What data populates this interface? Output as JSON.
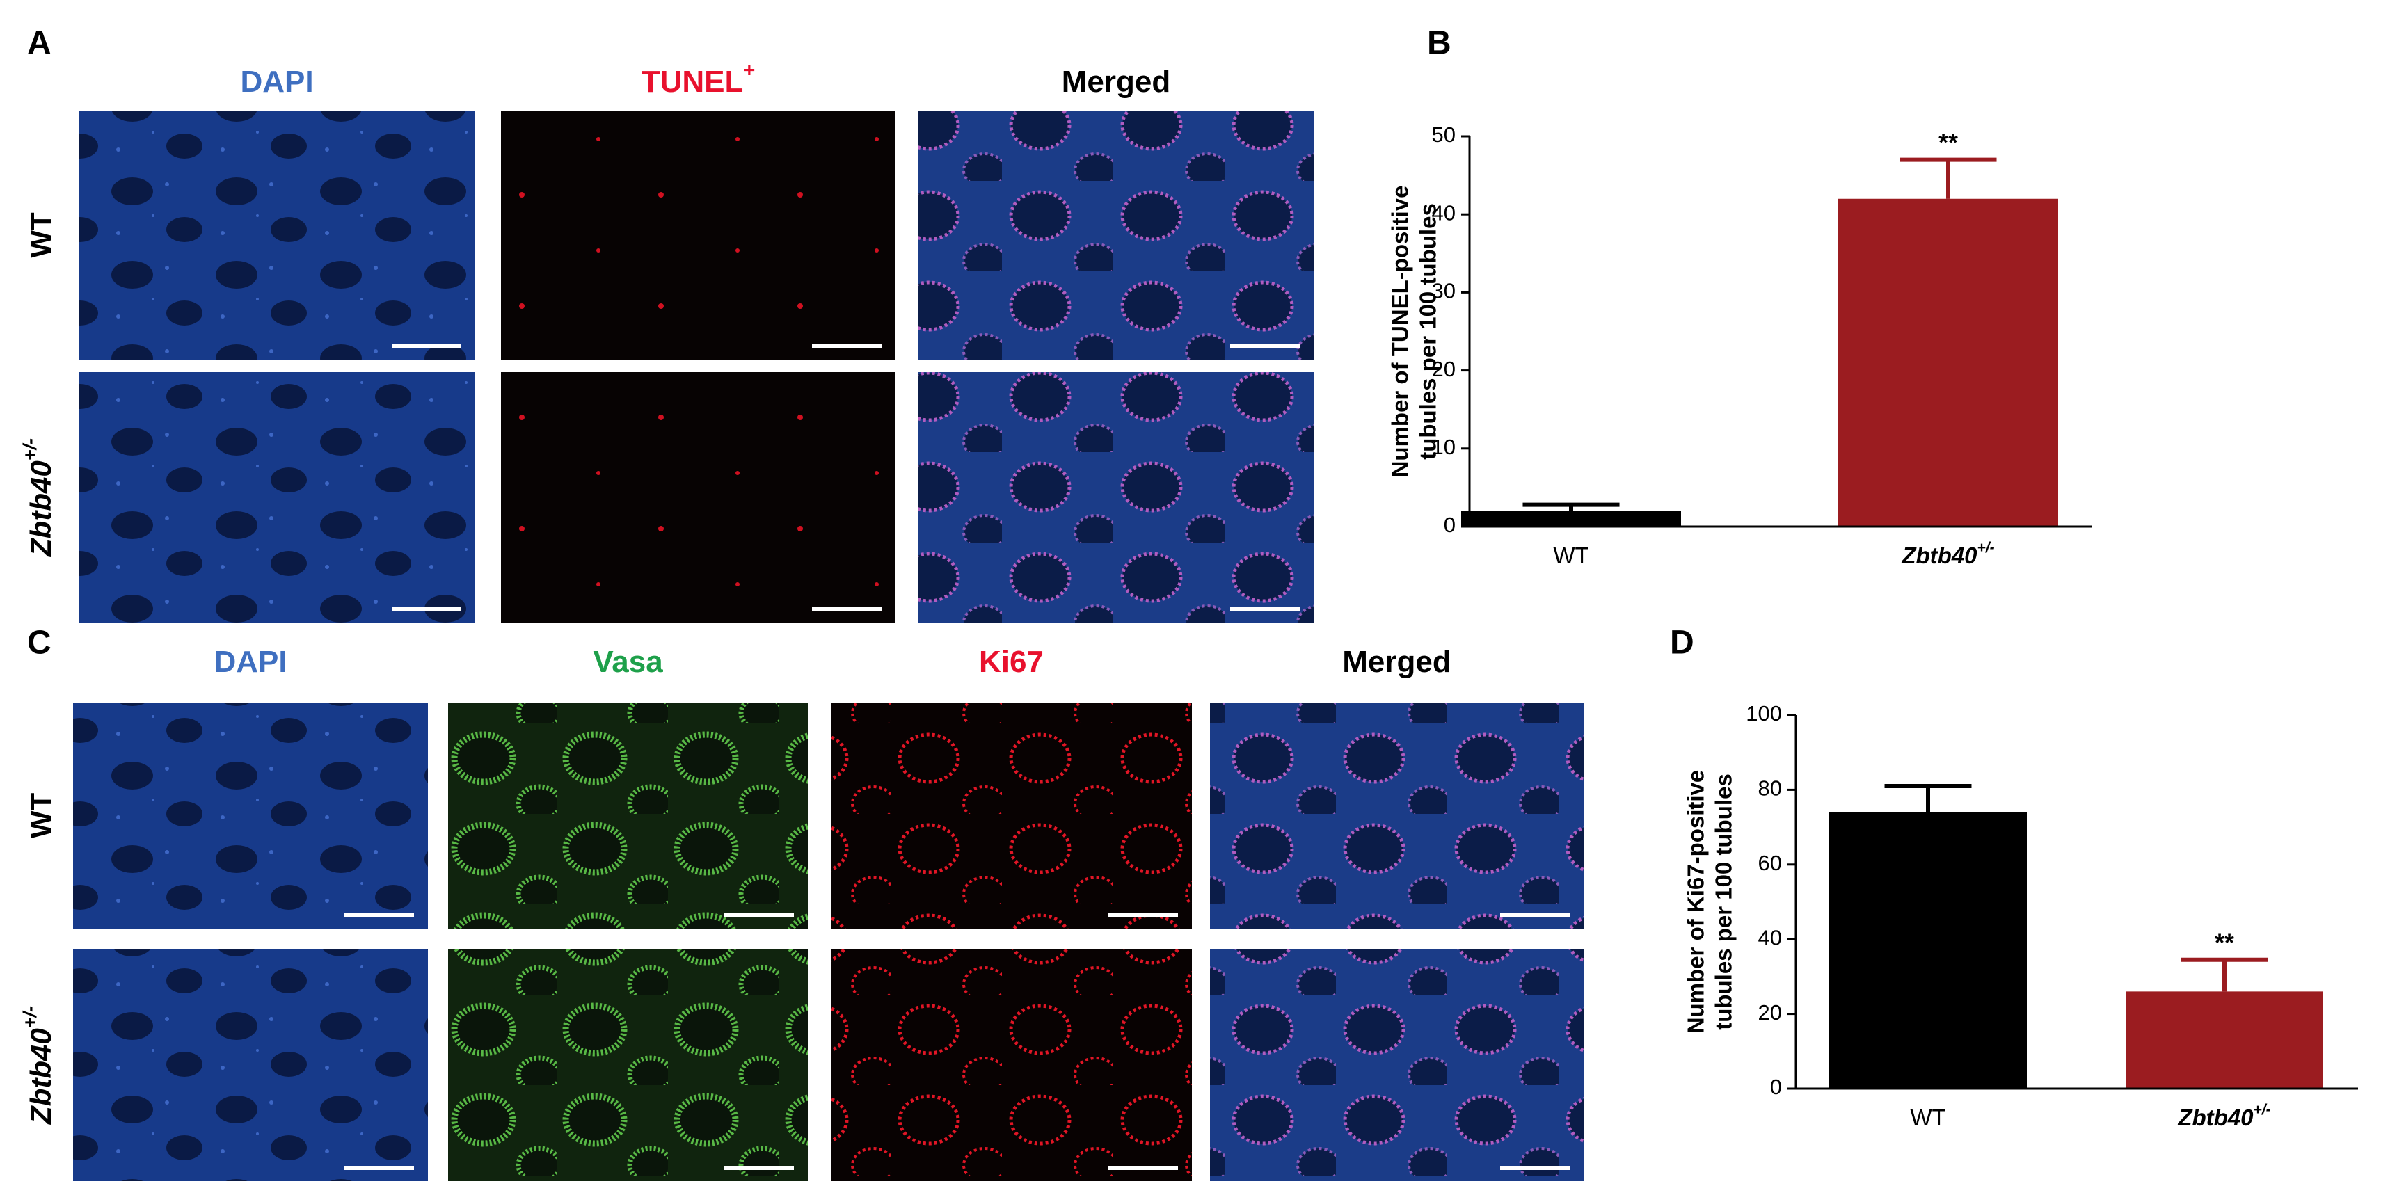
{
  "figure": {
    "panel_labels": [
      "A",
      "B",
      "C",
      "D"
    ],
    "panel_a": {
      "columns": [
        {
          "text": "DAPI",
          "color": "#3f6fc0"
        },
        {
          "text": "TUNEL",
          "superscript": "+",
          "color": "#e8112d"
        },
        {
          "text": "Merged",
          "color": "#000000"
        }
      ],
      "rows": [
        {
          "text": "WT"
        },
        {
          "text": "Zbtb40",
          "superscript": "+/-"
        }
      ]
    },
    "panel_c": {
      "columns": [
        {
          "text": "DAPI",
          "color": "#3f6fc0"
        },
        {
          "text": "Vasa",
          "color": "#1ea04a"
        },
        {
          "text": "Ki67",
          "color": "#e8112d"
        },
        {
          "text": "Merged",
          "color": "#000000"
        }
      ],
      "rows": [
        {
          "text": "WT"
        },
        {
          "text": "Zbtb40",
          "superscript": "+/-"
        }
      ]
    }
  },
  "chart_data": [
    {
      "type": "bar",
      "y_label": [
        "Number of TUNEL-positive",
        "tubules per 100 tubules"
      ],
      "categories": [
        {
          "text": "WT"
        },
        {
          "text": "Zbtb40",
          "superscript": "+/-"
        }
      ],
      "values": [
        2,
        42
      ],
      "errors": [
        0.8,
        5
      ],
      "colors": [
        "#000000",
        "#9b1c20"
      ],
      "significance_labels": [
        null,
        "**"
      ],
      "ylim": [
        0,
        50
      ],
      "yticks": [
        0,
        10,
        20,
        30,
        40,
        50
      ]
    },
    {
      "type": "bar",
      "y_label": [
        "Number of Ki67-positive",
        "tubules per 100 tubules"
      ],
      "categories": [
        {
          "text": "WT"
        },
        {
          "text": "Zbtb40",
          "superscript": "+/-"
        }
      ],
      "values": [
        74,
        26
      ],
      "errors": [
        7,
        8.5
      ],
      "colors": [
        "#000000",
        "#9b1c20"
      ],
      "significance_labels": [
        null,
        "**"
      ],
      "ylim": [
        0,
        100
      ],
      "yticks": [
        0,
        20,
        40,
        60,
        80,
        100
      ]
    }
  ]
}
